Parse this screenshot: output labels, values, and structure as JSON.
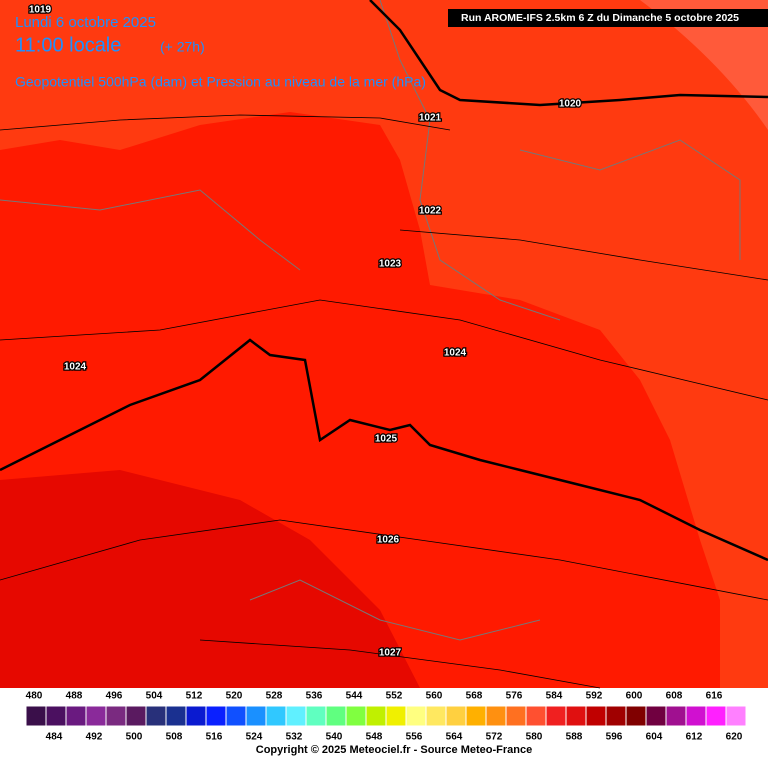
{
  "header": {
    "date": "Lundi 6 octobre 2025",
    "time": "11:00 locale",
    "lead": "(+ 27h)",
    "subtitle": "Geopotentiel 500hPa (dam) et Pression au niveau de la mer (hPa)",
    "run": "Run AROME-IFS 2.5km 6 Z du Dimanche 5 octobre 2025"
  },
  "isobars": [
    "1019",
    "1020",
    "1021",
    "1022",
    "1023",
    "1024",
    "1024",
    "1025",
    "1026",
    "1027"
  ],
  "legend": {
    "steps": [
      {
        "value": 480,
        "color": "#3a0f4a"
      },
      {
        "value": 484,
        "color": "#4b1060"
      },
      {
        "value": 488,
        "color": "#6a1a80"
      },
      {
        "value": 492,
        "color": "#8a2a9a"
      },
      {
        "value": 496,
        "color": "#7a2a80"
      },
      {
        "value": 500,
        "color": "#5a1a60"
      },
      {
        "value": 504,
        "color": "#28307a"
      },
      {
        "value": 508,
        "color": "#1a3090"
      },
      {
        "value": 512,
        "color": "#0a1ad0"
      },
      {
        "value": 516,
        "color": "#0a20ff"
      },
      {
        "value": 520,
        "color": "#1050ff"
      },
      {
        "value": 524,
        "color": "#1a90ff"
      },
      {
        "value": 528,
        "color": "#30c8ff"
      },
      {
        "value": 532,
        "color": "#60f0ff"
      },
      {
        "value": 536,
        "color": "#60ffc0"
      },
      {
        "value": 540,
        "color": "#60ff80"
      },
      {
        "value": 544,
        "color": "#80ff40"
      },
      {
        "value": 548,
        "color": "#c0f000"
      },
      {
        "value": 552,
        "color": "#f0f000"
      },
      {
        "value": 556,
        "color": "#ffff80"
      },
      {
        "value": 560,
        "color": "#ffe860"
      },
      {
        "value": 564,
        "color": "#ffd040"
      },
      {
        "value": 568,
        "color": "#ffb000"
      },
      {
        "value": 572,
        "color": "#ff9010"
      },
      {
        "value": 576,
        "color": "#ff7020"
      },
      {
        "value": 580,
        "color": "#ff5030"
      },
      {
        "value": 584,
        "color": "#f02020"
      },
      {
        "value": 588,
        "color": "#e01010"
      },
      {
        "value": 592,
        "color": "#c00000"
      },
      {
        "value": 596,
        "color": "#a00000"
      },
      {
        "value": 600,
        "color": "#800000"
      },
      {
        "value": 604,
        "color": "#700040"
      },
      {
        "value": 608,
        "color": "#a01090"
      },
      {
        "value": 612,
        "color": "#d010d0"
      },
      {
        "value": 616,
        "color": "#ff20ff"
      },
      {
        "value": 620,
        "color": "#ff80ff"
      }
    ]
  },
  "footer": {
    "copyright": "Copyright © 2025 Meteociel.fr - Source Meteo-France"
  }
}
